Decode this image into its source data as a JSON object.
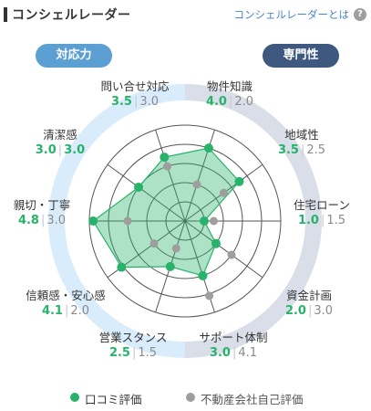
{
  "header": {
    "title": "コンシェルレーダー",
    "help_link": "コンシェルレーダーとは",
    "help_icon": "question-circle-icon"
  },
  "tabs": {
    "left": "対応力",
    "right": "専門性"
  },
  "legend": {
    "primary": "口コミ評価",
    "secondary": "不動産会社自己評価"
  },
  "colors": {
    "primary": "#27b36a",
    "secondary": "#9e9e9e",
    "left_ring": "#d9ecfb",
    "right_ring": "#d9dee9"
  },
  "chart_data": {
    "type": "radar",
    "rmax": 5,
    "categories": [
      "物件知識",
      "地域性",
      "住宅ローン",
      "資金計画",
      "サポート体制",
      "営業スタンス",
      "信頼感・安心感",
      "親切・丁寧",
      "清潔感",
      "問い合せ対応"
    ],
    "series": [
      {
        "name": "口コミ評価",
        "values": [
          4.0,
          3.5,
          1.0,
          2.0,
          3.0,
          2.5,
          4.1,
          4.8,
          3.0,
          3.5
        ]
      },
      {
        "name": "不動産会社自己評価",
        "values": [
          2.0,
          2.5,
          1.5,
          3.0,
          4.1,
          1.5,
          2.0,
          3.0,
          3.0,
          3.0
        ]
      }
    ],
    "labels": [
      {
        "name": "物件知識",
        "primary": "4.0",
        "secondary": "2.0"
      },
      {
        "name": "地域性",
        "primary": "3.5",
        "secondary": "2.5"
      },
      {
        "name": "住宅ローン",
        "primary": "1.0",
        "secondary": "1.5"
      },
      {
        "name": "資金計画",
        "primary": "2.0",
        "secondary": "3.0"
      },
      {
        "name": "サポート体制",
        "primary": "3.0",
        "secondary": "4.1"
      },
      {
        "name": "営業スタンス",
        "primary": "2.5",
        "secondary": "1.5"
      },
      {
        "name": "信頼感・安心感",
        "primary": "4.1",
        "secondary": "2.0"
      },
      {
        "name": "親切・丁寧",
        "primary": "4.8",
        "secondary": "3.0"
      },
      {
        "name": "清潔感",
        "primary": "3.0",
        "secondary": "3.0"
      },
      {
        "name": "問い合せ対応",
        "primary": "3.5",
        "secondary": "3.0"
      }
    ]
  }
}
